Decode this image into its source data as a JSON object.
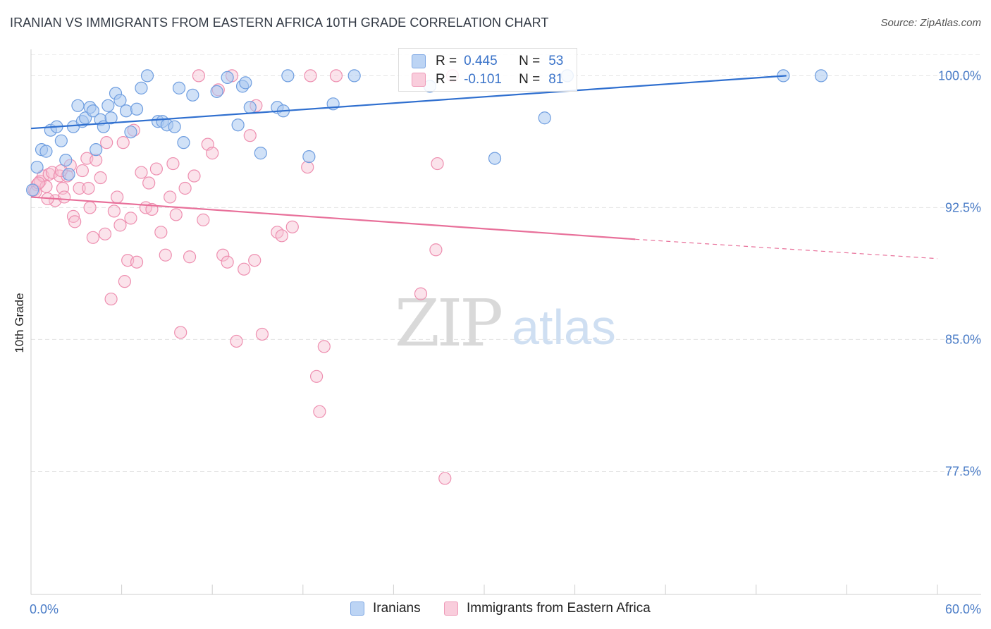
{
  "title": "IRANIAN VS IMMIGRANTS FROM EASTERN AFRICA 10TH GRADE CORRELATION CHART",
  "source": "Source: ZipAtlas.com",
  "watermark": {
    "zip": "ZIP",
    "atlas": "atlas"
  },
  "colors": {
    "blue_fill": "#a9c8f0",
    "blue_stroke": "#6f9ee0",
    "blue_line": "#2f6fcf",
    "pink_fill": "#f7c1d3",
    "pink_stroke": "#ee8fb0",
    "pink_line": "#e8709a",
    "tick_text": "#4a7cc7",
    "grid": "#e3e3e3"
  },
  "legend": {
    "rows": [
      {
        "r_label": "R =",
        "r_value": "0.445",
        "n_label": "N =",
        "n_value": "53",
        "series": "blue"
      },
      {
        "r_label": "R =",
        "r_value": "-0.101",
        "n_label": "N =",
        "n_value": "81",
        "series": "pink"
      }
    ]
  },
  "bottom_legend": [
    "Iranians",
    "Immigrants from Eastern Africa"
  ],
  "chart_data": {
    "type": "scatter",
    "xlabel": "",
    "ylabel": "10th Grade",
    "xlim": [
      0,
      60
    ],
    "ylim": [
      70.5,
      101.5
    ],
    "x_tick_labels": [
      "0.0%",
      "60.0%"
    ],
    "y_ticks": [
      77.5,
      85.0,
      92.5,
      100.0
    ],
    "y_tick_labels": [
      "77.5%",
      "85.0%",
      "92.5%",
      "100.0%"
    ],
    "grid": true,
    "series": [
      {
        "name": "Iranians",
        "color": "blue",
        "trend": {
          "x0": 0,
          "y0": 97.0,
          "x1": 50,
          "y1": 100.0,
          "dashed_to": null
        },
        "points": [
          [
            0.4,
            94.8
          ],
          [
            0.7,
            95.8
          ],
          [
            1.0,
            95.7
          ],
          [
            1.3,
            96.9
          ],
          [
            1.7,
            97.1
          ],
          [
            2.0,
            96.3
          ],
          [
            2.3,
            95.2
          ],
          [
            2.5,
            94.4
          ],
          [
            2.8,
            97.1
          ],
          [
            3.1,
            98.3
          ],
          [
            3.4,
            97.4
          ],
          [
            3.6,
            97.6
          ],
          [
            3.9,
            98.2
          ],
          [
            4.1,
            98.0
          ],
          [
            4.3,
            95.8
          ],
          [
            4.6,
            97.5
          ],
          [
            4.8,
            97.1
          ],
          [
            5.1,
            98.3
          ],
          [
            5.3,
            97.6
          ],
          [
            5.6,
            99.0
          ],
          [
            5.9,
            98.6
          ],
          [
            6.3,
            98.0
          ],
          [
            6.6,
            96.8
          ],
          [
            7.0,
            98.1
          ],
          [
            7.3,
            99.3
          ],
          [
            7.7,
            100.0
          ],
          [
            8.4,
            97.4
          ],
          [
            8.7,
            97.4
          ],
          [
            9.0,
            97.2
          ],
          [
            9.5,
            97.1
          ],
          [
            9.8,
            99.3
          ],
          [
            10.1,
            96.2
          ],
          [
            10.7,
            98.9
          ],
          [
            12.3,
            99.1
          ],
          [
            13.0,
            99.9
          ],
          [
            13.7,
            97.2
          ],
          [
            14.0,
            99.4
          ],
          [
            14.2,
            99.6
          ],
          [
            14.5,
            98.2
          ],
          [
            15.2,
            95.6
          ],
          [
            16.3,
            98.2
          ],
          [
            16.7,
            98.0
          ],
          [
            17.0,
            100.0
          ],
          [
            18.4,
            95.4
          ],
          [
            20.0,
            98.4
          ],
          [
            21.4,
            100.0
          ],
          [
            26.4,
            99.4
          ],
          [
            30.7,
            95.3
          ],
          [
            34.0,
            97.6
          ],
          [
            35.5,
            100.0
          ],
          [
            49.8,
            100.0
          ],
          [
            52.3,
            100.0
          ],
          [
            0.1,
            93.5
          ]
        ]
      },
      {
        "name": "Immigrants from Eastern Africa",
        "color": "pink",
        "trend": {
          "x0": 0,
          "y0": 93.1,
          "x1": 40,
          "y1": 90.7,
          "dashed_to": [
            60,
            89.6
          ]
        },
        "points": [
          [
            0.2,
            93.5
          ],
          [
            0.4,
            93.8
          ],
          [
            0.6,
            94.0
          ],
          [
            0.8,
            94.3
          ],
          [
            1.0,
            93.7
          ],
          [
            1.2,
            94.4
          ],
          [
            1.4,
            94.5
          ],
          [
            1.6,
            92.9
          ],
          [
            1.9,
            94.3
          ],
          [
            2.1,
            93.6
          ],
          [
            2.2,
            93.1
          ],
          [
            2.4,
            94.3
          ],
          [
            2.6,
            94.9
          ],
          [
            2.8,
            92.0
          ],
          [
            2.9,
            91.7
          ],
          [
            3.2,
            93.6
          ],
          [
            3.4,
            94.6
          ],
          [
            3.7,
            95.3
          ],
          [
            3.8,
            93.6
          ],
          [
            3.9,
            92.5
          ],
          [
            4.1,
            90.8
          ],
          [
            4.3,
            95.2
          ],
          [
            4.6,
            94.2
          ],
          [
            4.9,
            91.0
          ],
          [
            5.0,
            96.2
          ],
          [
            5.3,
            87.3
          ],
          [
            5.5,
            92.3
          ],
          [
            5.7,
            93.1
          ],
          [
            5.9,
            91.5
          ],
          [
            6.1,
            96.2
          ],
          [
            6.2,
            88.3
          ],
          [
            6.4,
            89.5
          ],
          [
            6.6,
            91.9
          ],
          [
            6.8,
            96.9
          ],
          [
            7.0,
            89.4
          ],
          [
            7.3,
            94.5
          ],
          [
            7.6,
            92.5
          ],
          [
            7.8,
            93.9
          ],
          [
            8.0,
            92.4
          ],
          [
            8.3,
            94.7
          ],
          [
            8.6,
            91.1
          ],
          [
            8.9,
            89.8
          ],
          [
            9.2,
            93.1
          ],
          [
            9.4,
            95.0
          ],
          [
            9.6,
            92.1
          ],
          [
            9.9,
            85.4
          ],
          [
            10.2,
            93.6
          ],
          [
            10.5,
            89.7
          ],
          [
            10.8,
            94.3
          ],
          [
            11.1,
            100.0
          ],
          [
            11.4,
            91.8
          ],
          [
            11.7,
            96.1
          ],
          [
            12.0,
            95.6
          ],
          [
            12.4,
            99.2
          ],
          [
            12.7,
            89.8
          ],
          [
            13.0,
            89.4
          ],
          [
            13.3,
            100.0
          ],
          [
            13.6,
            84.9
          ],
          [
            14.1,
            89.0
          ],
          [
            14.5,
            96.6
          ],
          [
            14.8,
            89.5
          ],
          [
            14.9,
            98.3
          ],
          [
            15.3,
            85.3
          ],
          [
            16.3,
            91.1
          ],
          [
            16.6,
            90.9
          ],
          [
            17.3,
            91.4
          ],
          [
            18.3,
            94.8
          ],
          [
            18.5,
            100.0
          ],
          [
            18.9,
            82.9
          ],
          [
            19.1,
            80.9
          ],
          [
            19.4,
            84.6
          ],
          [
            20.2,
            100.0
          ],
          [
            25.8,
            87.6
          ],
          [
            26.8,
            90.1
          ],
          [
            26.9,
            95.0
          ],
          [
            27.4,
            77.1
          ],
          [
            27.9,
            100.0
          ],
          [
            0.3,
            93.4
          ],
          [
            0.5,
            93.9
          ],
          [
            1.1,
            93.0
          ],
          [
            2.0,
            94.6
          ]
        ]
      }
    ]
  }
}
